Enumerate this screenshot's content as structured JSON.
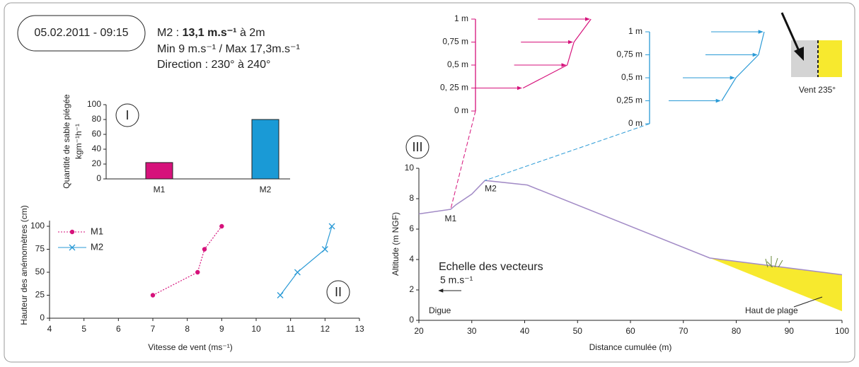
{
  "header": {
    "date": "05.02.2011 - 09:15",
    "line1": [
      "M2 : ",
      "13,1 m.s⁻¹",
      " à 2m"
    ],
    "line2": "Min 9 m.s⁻¹ / Max 17,3m.s⁻¹",
    "line3": "Direction : 230° à 240°"
  },
  "chart_data": [
    {
      "type": "bar",
      "label": "I",
      "ylabel": [
        "Quantité de sable piégée",
        "kgm⁻¹h⁻¹"
      ],
      "categories": [
        "M1",
        "M2"
      ],
      "values": [
        22,
        80
      ],
      "colors": [
        "#d6127b",
        "#1a9ad6"
      ],
      "ylim": [
        0,
        100
      ],
      "yticks": [
        0,
        20,
        40,
        60,
        80,
        100
      ]
    },
    {
      "type": "line",
      "label": "II",
      "xlabel": "Vitesse de vent (ms⁻¹)",
      "ylabel": "Hauteur des anémomètres (cm)",
      "legend": "upper-left",
      "series": [
        {
          "name": "M1",
          "color": "#d6127b",
          "marker": "circle",
          "dash": "dotted",
          "x": [
            7,
            8.3,
            8.5,
            9
          ],
          "values": [
            25,
            50,
            75,
            100
          ]
        },
        {
          "name": "M2",
          "color": "#2a9ad6",
          "marker": "x",
          "dash": "solid",
          "x": [
            10.7,
            11.2,
            12,
            12.2
          ],
          "values": [
            25,
            50,
            75,
            100
          ]
        }
      ],
      "xlim": [
        4,
        13
      ],
      "xticks": [
        4,
        5,
        6,
        7,
        8,
        9,
        10,
        11,
        12,
        13
      ],
      "ylim": [
        0,
        100
      ],
      "yticks": [
        0,
        25,
        50,
        75,
        100
      ]
    },
    {
      "type": "profile",
      "label": "III",
      "xlabel": "Distance cumulée (m)",
      "ylabel": "Altitude (m NGF)",
      "color": "#a28bc6",
      "x": [
        20,
        26,
        27,
        30,
        32.5,
        40.5,
        75,
        100
      ],
      "values": [
        7,
        7.3,
        7.6,
        8.3,
        9.2,
        8.9,
        4.1,
        3
      ],
      "area": {
        "color": "#f7e92e",
        "x": [
          75,
          100,
          100
        ],
        "values": [
          4.1,
          3,
          0.6
        ]
      },
      "station_labels": [
        "M1",
        "M2"
      ],
      "scale_title": "Echelle des vecteurs",
      "scale_label": "5 m.s⁻¹",
      "left_label": "Digue",
      "right_label": "Haut de plage",
      "wind_label": "Vent 235°",
      "xlim": [
        20,
        100
      ],
      "xticks": [
        20,
        30,
        40,
        50,
        60,
        70,
        80,
        90,
        100
      ],
      "ylim": [
        0,
        10
      ],
      "yticks": [
        0,
        2,
        4,
        6,
        8,
        10
      ]
    },
    {
      "type": "wind-profile",
      "color": "#d6127b",
      "x": [
        7,
        8.3,
        8.5,
        9
      ],
      "values": [
        0.25,
        0.5,
        0.75,
        1
      ],
      "xlim": [
        5.6,
        9.1
      ],
      "ylim": [
        0,
        1
      ],
      "yticks": [
        {
          "value": 0,
          "label": "0 m"
        },
        {
          "value": 0.25,
          "label": "0, 25 m"
        },
        {
          "value": 0.5,
          "label": "0,5 m"
        },
        {
          "value": 0.75,
          "label": "0,75 m"
        },
        {
          "value": 1,
          "label": "1 m"
        }
      ]
    },
    {
      "type": "wind-profile",
      "color": "#2a9ad6",
      "x": [
        10.7,
        11.2,
        12,
        12.2
      ],
      "values": [
        0.25,
        0.5,
        0.75,
        1
      ],
      "xlim": [
        8.15,
        12.3
      ],
      "ylim": [
        0,
        1
      ],
      "yticks": [
        {
          "value": 0,
          "label": "0 m"
        },
        {
          "value": 0.25,
          "label": "0,25 m"
        },
        {
          "value": 0.5,
          "label": "0,5 m"
        },
        {
          "value": 0.75,
          "label": "0,75 m"
        },
        {
          "value": 1,
          "label": "1 m"
        }
      ]
    }
  ]
}
